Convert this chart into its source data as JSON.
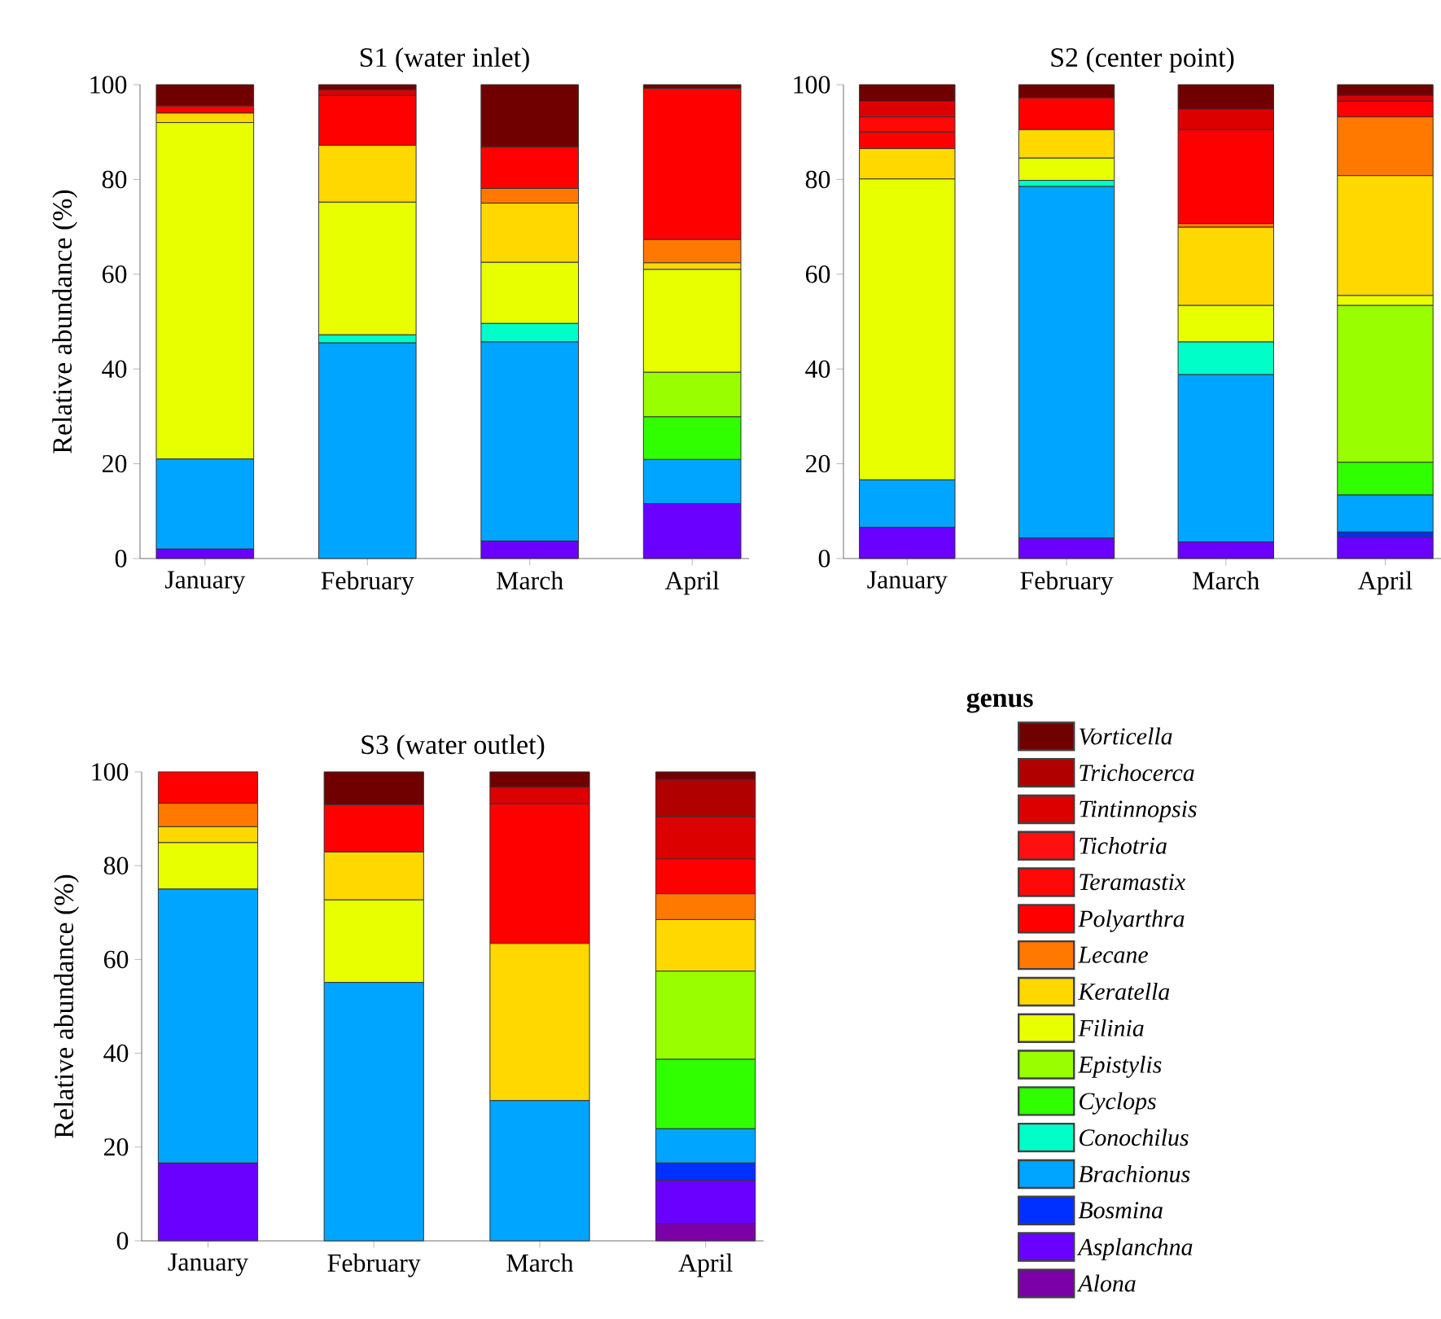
{
  "chart_data": [
    {
      "type": "bar",
      "title": "S1 (water inlet)",
      "ylabel": "Relative abundance (%)",
      "stacked": true,
      "categories": [
        "January",
        "February",
        "March",
        "April"
      ],
      "ylim": [
        0,
        100
      ],
      "yticks": [
        0,
        20,
        40,
        60,
        80,
        100
      ],
      "series": [
        {
          "color": "#7b00a8",
          "values": [
            null,
            null,
            null,
            null
          ]
        },
        {
          "color": "#6a00ff",
          "values": [
            2,
            null,
            3.7,
            11.6
          ]
        },
        {
          "color": "#0030ff",
          "values": [
            null,
            null,
            null,
            null
          ]
        },
        {
          "color": "#00a5ff",
          "values": [
            19,
            45.5,
            42,
            9.3
          ]
        },
        {
          "color": "#00ffc8",
          "values": [
            null,
            1.7,
            3.9,
            null
          ]
        },
        {
          "color": "#30ff00",
          "values": [
            null,
            null,
            null,
            9
          ]
        },
        {
          "color": "#99ff00",
          "values": [
            null,
            null,
            null,
            9.4
          ]
        },
        {
          "color": "#e8ff00",
          "values": [
            71,
            28,
            12.9,
            21.7
          ]
        },
        {
          "color": "#ffd800",
          "values": [
            2,
            12,
            12.5,
            1.4
          ]
        },
        {
          "color": "#ff7800",
          "values": [
            null,
            null,
            3.1,
            4.9
          ]
        },
        {
          "color": "#ff0000",
          "values": [
            1.5,
            10.5,
            8.7,
            31.9
          ]
        },
        {
          "color": "#ff0808",
          "values": [
            null,
            null,
            null,
            null
          ]
        },
        {
          "color": "#ff1010",
          "values": [
            null,
            null,
            null,
            null
          ]
        },
        {
          "color": "#dc0000",
          "values": [
            null,
            1.2,
            null,
            null
          ]
        },
        {
          "color": "#b00000",
          "values": [
            null,
            null,
            null,
            null
          ]
        },
        {
          "color": "#700000",
          "values": [
            4.5,
            1.1,
            13.2,
            0.8
          ]
        }
      ]
    },
    {
      "type": "bar",
      "title": "S2 (center point)",
      "stacked": true,
      "categories": [
        "January",
        "February",
        "March",
        "April"
      ],
      "ylim": [
        0,
        100
      ],
      "yticks": [
        0,
        20,
        40,
        60,
        80,
        100
      ],
      "series": [
        {
          "color": "#7b00a8",
          "values": [
            null,
            null,
            null,
            null
          ]
        },
        {
          "color": "#6a00ff",
          "values": [
            6.6,
            4.3,
            3.5,
            4.5
          ]
        },
        {
          "color": "#0030ff",
          "values": [
            null,
            null,
            null,
            1.1
          ]
        },
        {
          "color": "#00a5ff",
          "values": [
            10,
            74.2,
            35.3,
            7.8
          ]
        },
        {
          "color": "#00ffc8",
          "values": [
            null,
            1.3,
            6.9,
            null
          ]
        },
        {
          "color": "#30ff00",
          "values": [
            null,
            null,
            null,
            6.9
          ]
        },
        {
          "color": "#99ff00",
          "values": [
            null,
            null,
            null,
            33.1
          ]
        },
        {
          "color": "#e8ff00",
          "values": [
            63.5,
            4.7,
            7.7,
            2.1
          ]
        },
        {
          "color": "#ffd800",
          "values": [
            6.4,
            6,
            16.5,
            25.3
          ]
        },
        {
          "color": "#ff7800",
          "values": [
            null,
            null,
            0.8,
            12.4
          ]
        },
        {
          "color": "#ff0000",
          "values": [
            3.5,
            6.7,
            19.8,
            3.3
          ]
        },
        {
          "color": "#ff0808",
          "values": [
            3.2,
            null,
            null,
            null
          ]
        },
        {
          "color": "#ff1010",
          "values": [
            null,
            null,
            null,
            null
          ]
        },
        {
          "color": "#dc0000",
          "values": [
            3.3,
            null,
            4.3,
            1.2
          ]
        },
        {
          "color": "#b00000",
          "values": [
            null,
            null,
            null,
            null
          ]
        },
        {
          "color": "#700000",
          "values": [
            3.5,
            2.8,
            5.2,
            2.3
          ]
        }
      ]
    },
    {
      "type": "bar",
      "title": "S3 (water outlet)",
      "ylabel": "Relative abundance (%)",
      "stacked": true,
      "legend": "right",
      "legend_title": "genus",
      "categories": [
        "January",
        "February",
        "March",
        "April"
      ],
      "ylim": [
        0,
        100
      ],
      "yticks": [
        0,
        20,
        40,
        60,
        80,
        100
      ],
      "series": [
        {
          "name": "Alona",
          "color": "#7b00a8",
          "values": [
            null,
            null,
            null,
            3.7
          ]
        },
        {
          "name": "Asplanchna",
          "color": "#6a00ff",
          "values": [
            16.6,
            null,
            null,
            9.2
          ]
        },
        {
          "name": "Bosmina",
          "color": "#0030ff",
          "values": [
            null,
            null,
            null,
            3.7
          ]
        },
        {
          "name": "Brachionus",
          "color": "#00a5ff",
          "values": [
            58.4,
            55.1,
            29.9,
            7.3
          ]
        },
        {
          "name": "Conochilus",
          "color": "#00ffc8",
          "values": [
            null,
            null,
            null,
            null
          ]
        },
        {
          "name": "Cyclops",
          "color": "#30ff00",
          "values": [
            null,
            null,
            null,
            14.8
          ]
        },
        {
          "name": "Epistylis",
          "color": "#99ff00",
          "values": [
            null,
            null,
            null,
            18.8
          ]
        },
        {
          "name": "Filinia",
          "color": "#e8ff00",
          "values": [
            9.9,
            17.6,
            null,
            null
          ]
        },
        {
          "name": "Keratella",
          "color": "#ffd800",
          "values": [
            3.4,
            10.2,
            33.5,
            11
          ]
        },
        {
          "name": "Lecane",
          "color": "#ff7800",
          "values": [
            5,
            null,
            null,
            5.5
          ]
        },
        {
          "name": "Polyarthra",
          "color": "#ff0000",
          "values": [
            6.7,
            10.1,
            29.8,
            7.4
          ]
        },
        {
          "name": "Teramastix",
          "color": "#ff0808",
          "values": [
            null,
            null,
            null,
            null
          ]
        },
        {
          "name": "Tichotria",
          "color": "#ff1010",
          "values": [
            null,
            null,
            null,
            null
          ]
        },
        {
          "name": "Tintinnopsis",
          "color": "#dc0000",
          "values": [
            null,
            null,
            3.5,
            9
          ]
        },
        {
          "name": "Trichocerca",
          "color": "#b00000",
          "values": [
            null,
            null,
            null,
            7.9
          ]
        },
        {
          "name": "Vorticella",
          "color": "#700000",
          "values": [
            null,
            7,
            3.3,
            1.7
          ]
        }
      ]
    }
  ]
}
